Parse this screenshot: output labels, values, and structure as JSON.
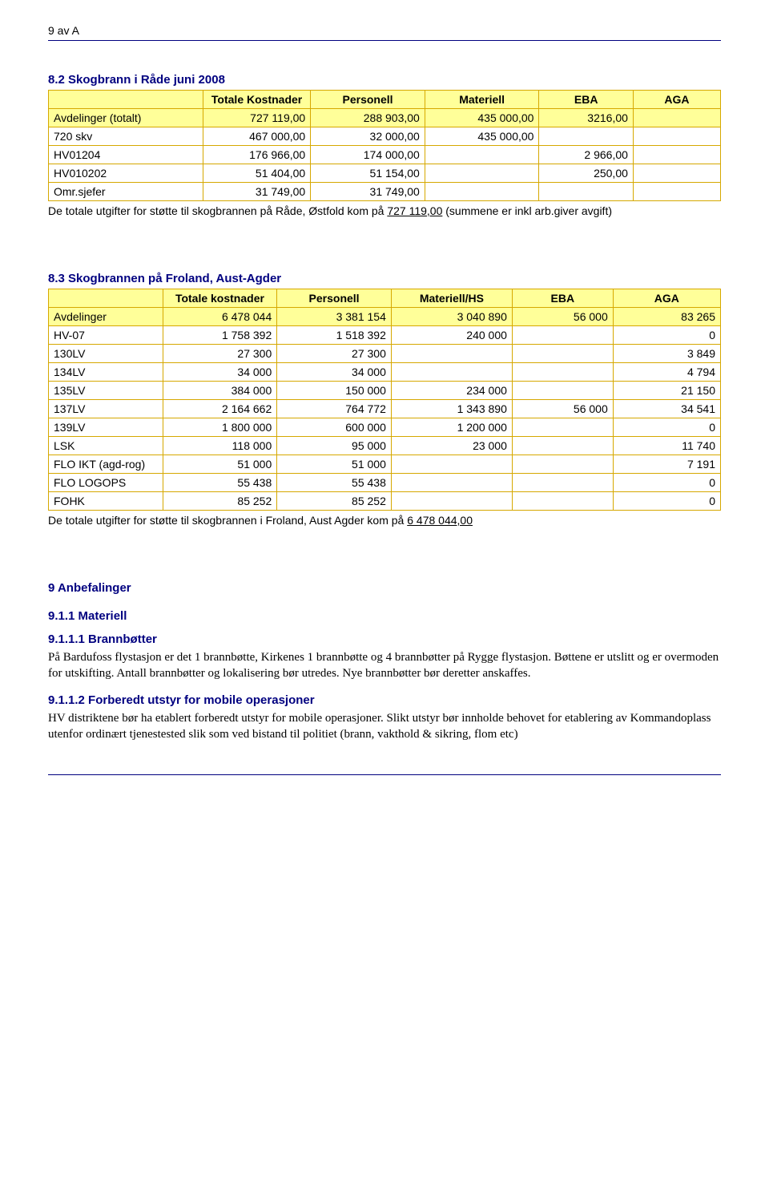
{
  "page_label": "9 av A",
  "section1": {
    "title": "8.2 Skogbrann i Råde juni 2008",
    "headers": [
      "",
      "Totale Kostnader",
      "Personell",
      "Materiell",
      "EBA",
      "AGA"
    ],
    "rows": [
      {
        "label": "Avdelinger (totalt)",
        "cells": [
          "727 119,00",
          "288 903,00",
          "435 000,00",
          "3216,00",
          ""
        ],
        "hdr": true
      },
      {
        "label": "720 skv",
        "cells": [
          "467 000,00",
          "32 000,00",
          "435 000,00",
          "",
          ""
        ],
        "hdr": false
      },
      {
        "label": "HV01204",
        "cells": [
          "176 966,00",
          "174 000,00",
          "",
          "2 966,00",
          ""
        ],
        "hdr": false
      },
      {
        "label": "HV010202",
        "cells": [
          "51 404,00",
          "51 154,00",
          "",
          "250,00",
          ""
        ],
        "hdr": false
      },
      {
        "label": "Omr.sjefer",
        "cells": [
          "31 749,00",
          "31 749,00",
          "",
          "",
          ""
        ],
        "hdr": false
      }
    ],
    "caption_pre": "De totale utgifter for støtte til skogbrannen på Råde, Østfold kom på ",
    "caption_underlined": "727 119,00",
    "caption_post": " (summene er inkl arb.giver avgift)"
  },
  "section2": {
    "title": "8.3 Skogbrannen på Froland, Aust-Agder",
    "headers": [
      "",
      "Totale kostnader",
      "Personell",
      "Materiell/HS",
      "EBA",
      "AGA"
    ],
    "rows": [
      {
        "label": "Avdelinger",
        "cells": [
          "6 478 044",
          "3 381 154",
          "3 040 890",
          "56 000",
          "83 265"
        ],
        "hdr": true
      },
      {
        "label": "HV-07",
        "cells": [
          "1 758 392",
          "1 518 392",
          "240 000",
          "",
          "0"
        ],
        "hdr": false
      },
      {
        "label": "130LV",
        "cells": [
          "27 300",
          "27 300",
          "",
          "",
          "3 849"
        ],
        "hdr": false
      },
      {
        "label": "134LV",
        "cells": [
          "34 000",
          "34 000",
          "",
          "",
          "4 794"
        ],
        "hdr": false
      },
      {
        "label": "135LV",
        "cells": [
          "384 000",
          "150 000",
          "234 000",
          "",
          "21 150"
        ],
        "hdr": false
      },
      {
        "label": "137LV",
        "cells": [
          "2 164 662",
          "764 772",
          "1 343 890",
          "56 000",
          "34 541"
        ],
        "hdr": false
      },
      {
        "label": "139LV",
        "cells": [
          "1 800 000",
          "600 000",
          "1 200 000",
          "",
          "0"
        ],
        "hdr": false
      },
      {
        "label": "LSK",
        "cells": [
          "118 000",
          "95 000",
          "23 000",
          "",
          "11 740"
        ],
        "hdr": false
      },
      {
        "label": "FLO IKT (agd-rog)",
        "cells": [
          "51 000",
          "51 000",
          "",
          "",
          "7 191"
        ],
        "hdr": false
      },
      {
        "label": "FLO LOGOPS",
        "cells": [
          "55 438",
          "55 438",
          "",
          "",
          "0"
        ],
        "hdr": false
      },
      {
        "label": "FOHK",
        "cells": [
          "85 252",
          "85 252",
          "",
          "",
          "0"
        ],
        "hdr": false
      }
    ],
    "caption_pre": "De totale utgifter for støtte til skogbrannen i Froland, Aust Agder kom på ",
    "caption_underlined": "6 478 044,00",
    "caption_post": ""
  },
  "section3": {
    "title": "9 Anbefalinger",
    "s1": {
      "title": "9.1.1 Materiell",
      "s1": {
        "title": "9.1.1.1 Brannbøtter",
        "text": "På Bardufoss flystasjon er det 1 brannbøtte, Kirkenes 1 brannbøtte og 4 brannbøtter på Rygge flystasjon. Bøttene er utslitt og er overmoden for utskifting. Antall brannbøtter og lokalisering bør utredes. Nye brannbøtter bør deretter anskaffes."
      },
      "s2": {
        "title": "9.1.1.2 Forberedt utstyr for mobile operasjoner",
        "text": "HV distriktene bør ha etablert forberedt utstyr for mobile operasjoner. Slikt utstyr bør innholde behovet for etablering av Kommandoplass utenfor ordinært tjenestested slik som ved bistand til politiet (brann, vakthold & sikring, flom etc)"
      }
    }
  }
}
